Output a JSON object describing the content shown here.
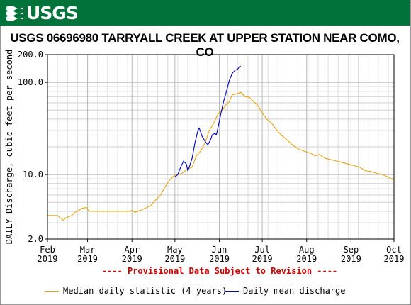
{
  "header": {
    "logo_text": "USGS",
    "banner_color": "#00733a"
  },
  "chart_data": {
    "type": "line",
    "title": "USGS 06696980 TARRYALL CREEK AT UPPER STATION NEAR COMO, CO",
    "ylabel": "DAILY Discharge, cubic feet per second",
    "yscale": "log",
    "ylim": [
      2.0,
      200.0
    ],
    "ytick_labels": [
      "2.0",
      "10.0",
      "100.0",
      "200.0"
    ],
    "ytick_values": [
      2.0,
      10.0,
      100.0,
      200.0
    ],
    "xlim": [
      "2019-02-01",
      "2019-10-01"
    ],
    "xtick_labels": [
      {
        "month": "Feb",
        "year": "2019",
        "date": "2019-02-01"
      },
      {
        "month": "Mar",
        "year": "2019",
        "date": "2019-03-01"
      },
      {
        "month": "Apr",
        "year": "2019",
        "date": "2019-04-01"
      },
      {
        "month": "May",
        "year": "2019",
        "date": "2019-05-01"
      },
      {
        "month": "Jun",
        "year": "2019",
        "date": "2019-06-01"
      },
      {
        "month": "Jul",
        "year": "2019",
        "date": "2019-07-01"
      },
      {
        "month": "Aug",
        "year": "2019",
        "date": "2019-08-01"
      },
      {
        "month": "Sep",
        "year": "2019",
        "date": "2019-09-01"
      },
      {
        "month": "Oct",
        "year": "2019",
        "date": "2019-10-01"
      }
    ],
    "grid": true,
    "annotation": "---- Provisional Data Subject to Revision ----",
    "legend_position": "bottom",
    "series": [
      {
        "name": "Median daily statistic (4 years)",
        "color": "#e8a317",
        "points": [
          [
            "2019-02-01",
            3.6
          ],
          [
            "2019-02-08",
            3.6
          ],
          [
            "2019-02-12",
            3.2
          ],
          [
            "2019-02-14",
            3.4
          ],
          [
            "2019-02-18",
            3.6
          ],
          [
            "2019-02-20",
            3.9
          ],
          [
            "2019-02-23",
            4.1
          ],
          [
            "2019-02-25",
            4.3
          ],
          [
            "2019-02-28",
            4.4
          ],
          [
            "2019-03-02",
            4.0
          ],
          [
            "2019-03-08",
            4.0
          ],
          [
            "2019-03-12",
            4.0
          ],
          [
            "2019-03-20",
            4.0
          ],
          [
            "2019-03-31",
            4.0
          ],
          [
            "2019-04-01",
            4.1
          ],
          [
            "2019-04-03",
            3.9
          ],
          [
            "2019-04-07",
            4.1
          ],
          [
            "2019-04-10",
            4.3
          ],
          [
            "2019-04-14",
            4.6
          ],
          [
            "2019-04-17",
            5.2
          ],
          [
            "2019-04-21",
            6.0
          ],
          [
            "2019-04-24",
            7.3
          ],
          [
            "2019-04-27",
            8.6
          ],
          [
            "2019-04-30",
            9.6
          ],
          [
            "2019-05-03",
            10.0
          ],
          [
            "2019-05-06",
            10.3
          ],
          [
            "2019-05-10",
            11.5
          ],
          [
            "2019-05-13",
            12.0
          ],
          [
            "2019-05-16",
            16.0
          ],
          [
            "2019-05-19",
            18.0
          ],
          [
            "2019-05-22",
            22.0
          ],
          [
            "2019-05-25",
            30.0
          ],
          [
            "2019-05-28",
            36.0
          ],
          [
            "2019-05-31",
            45.0
          ],
          [
            "2019-06-03",
            50.0
          ],
          [
            "2019-06-06",
            58.0
          ],
          [
            "2019-06-08",
            62.0
          ],
          [
            "2019-06-10",
            73.0
          ],
          [
            "2019-06-13",
            75.0
          ],
          [
            "2019-06-16",
            78.0
          ],
          [
            "2019-06-19",
            70.0
          ],
          [
            "2019-06-22",
            69.0
          ],
          [
            "2019-06-25",
            62.0
          ],
          [
            "2019-06-28",
            56.0
          ],
          [
            "2019-07-01",
            47.0
          ],
          [
            "2019-07-04",
            40.0
          ],
          [
            "2019-07-07",
            37.0
          ],
          [
            "2019-07-10",
            32.0
          ],
          [
            "2019-07-14",
            27.0
          ],
          [
            "2019-07-18",
            24.0
          ],
          [
            "2019-07-22",
            21.0
          ],
          [
            "2019-07-26",
            19.0
          ],
          [
            "2019-07-30",
            18.0
          ],
          [
            "2019-08-04",
            17.0
          ],
          [
            "2019-08-07",
            16.0
          ],
          [
            "2019-08-10",
            16.5
          ],
          [
            "2019-08-14",
            15.0
          ],
          [
            "2019-08-18",
            14.5
          ],
          [
            "2019-08-22",
            14.0
          ],
          [
            "2019-08-26",
            13.5
          ],
          [
            "2019-08-30",
            13.0
          ],
          [
            "2019-09-03",
            12.5
          ],
          [
            "2019-09-07",
            12.0
          ],
          [
            "2019-09-11",
            11.0
          ],
          [
            "2019-09-15",
            10.8
          ],
          [
            "2019-09-19",
            10.3
          ],
          [
            "2019-09-23",
            10.0
          ],
          [
            "2019-09-27",
            9.4
          ],
          [
            "2019-09-30",
            8.9
          ],
          [
            "2019-10-01",
            8.8
          ]
        ]
      },
      {
        "name": "Daily mean discharge",
        "color": "#0000c8",
        "points": [
          [
            "2019-05-01",
            9.4
          ],
          [
            "2019-05-03",
            10.0
          ],
          [
            "2019-05-05",
            12.0
          ],
          [
            "2019-05-07",
            14.0
          ],
          [
            "2019-05-09",
            13.0
          ],
          [
            "2019-05-10",
            11.0
          ],
          [
            "2019-05-11",
            12.0
          ],
          [
            "2019-05-13",
            15.0
          ],
          [
            "2019-05-15",
            22.0
          ],
          [
            "2019-05-17",
            30.0
          ],
          [
            "2019-05-18",
            32.0
          ],
          [
            "2019-05-20",
            26.0
          ],
          [
            "2019-05-22",
            23.0
          ],
          [
            "2019-05-24",
            21.0
          ],
          [
            "2019-05-26",
            24.0
          ],
          [
            "2019-05-27",
            27.0
          ],
          [
            "2019-05-29",
            28.0
          ],
          [
            "2019-05-30",
            27.0
          ],
          [
            "2019-05-31",
            32.0
          ],
          [
            "2019-06-02",
            45.0
          ],
          [
            "2019-06-04",
            62.0
          ],
          [
            "2019-06-06",
            80.0
          ],
          [
            "2019-06-08",
            105.0
          ],
          [
            "2019-06-10",
            125.0
          ],
          [
            "2019-06-12",
            135.0
          ],
          [
            "2019-06-14",
            140.0
          ],
          [
            "2019-06-15",
            148.0
          ],
          [
            "2019-06-16",
            150.0
          ]
        ]
      }
    ]
  }
}
